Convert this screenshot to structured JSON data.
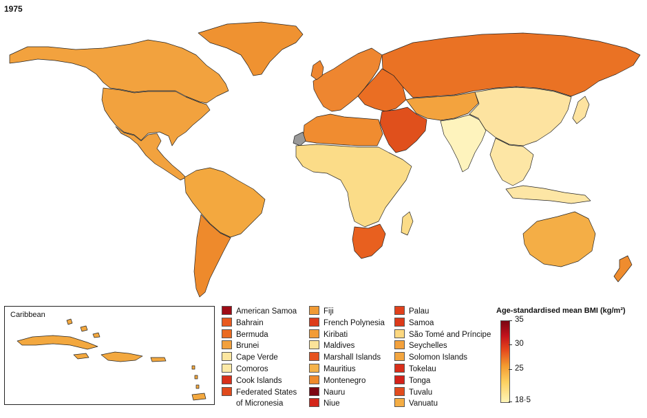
{
  "year": "1975",
  "caribbean_label": "Caribbean",
  "legend": {
    "col1": [
      {
        "label": "American Samoa",
        "color": "#9e0c16"
      },
      {
        "label": "Bahrain",
        "color": "#e8591e"
      },
      {
        "label": "Bermuda",
        "color": "#ea6a20"
      },
      {
        "label": "Brunei",
        "color": "#f2a03c"
      },
      {
        "label": "Cape Verde",
        "color": "#fbe6a0"
      },
      {
        "label": "Comoros",
        "color": "#fce9a6"
      },
      {
        "label": "Cook Islands",
        "color": "#d8301a"
      },
      {
        "label": "Federated States",
        "label2": "of Micronesia",
        "color": "#e04a1c"
      }
    ],
    "col2": [
      {
        "label": "Fiji",
        "color": "#f09a34"
      },
      {
        "label": "French Polynesia",
        "color": "#dd3c1a"
      },
      {
        "label": "Kiribati",
        "color": "#f29c36"
      },
      {
        "label": "Maldives",
        "color": "#fbe39a"
      },
      {
        "label": "Marshall Islands",
        "color": "#e6521e"
      },
      {
        "label": "Mauritius",
        "color": "#f5b34a"
      },
      {
        "label": "Montenegro",
        "color": "#ef8a2c"
      },
      {
        "label": "Nauru",
        "color": "#7d0612"
      },
      {
        "label": "Niue",
        "color": "#d4261a"
      }
    ],
    "col3": [
      {
        "label": "Palau",
        "color": "#e0411c"
      },
      {
        "label": "Samoa",
        "color": "#dc3a1a"
      },
      {
        "label": "São Tomé and Príncipe",
        "color": "#fcd880"
      },
      {
        "label": "Seychelles",
        "color": "#f3a13c"
      },
      {
        "label": "Solomon Islands",
        "color": "#f3a640"
      },
      {
        "label": "Tokelau",
        "color": "#d92e1a"
      },
      {
        "label": "Tonga",
        "color": "#d4221a"
      },
      {
        "label": "Tuvalu",
        "color": "#e24c1e"
      },
      {
        "label": "Vanuatu",
        "color": "#f4ad44"
      }
    ]
  },
  "colorbar": {
    "title": "Age-standardised mean BMI (kg/m²)",
    "ticks": [
      "35",
      "30",
      "25",
      "18·5"
    ],
    "min": 18.5,
    "max": 35
  },
  "colors": {
    "north_america": "#f2a23e",
    "latin_america": "#f3a83f",
    "south_cone": "#ee8a2c",
    "greenland": "#ef9231",
    "europe_west": "#ee8630",
    "europe_east": "#ea6e23",
    "russia": "#ea7224",
    "middle_east": "#e0501c",
    "north_africa": "#f08c30",
    "sub_saharan": "#fbdc88",
    "southern_africa": "#e8601f",
    "south_asia": "#fef3bd",
    "china": "#fde3a0",
    "central_asia": "#f3a33e",
    "se_asia": "#fde6a5",
    "australia": "#f4ae46",
    "new_zealand": "#ef8c2e",
    "western_sahara": "#999999"
  }
}
